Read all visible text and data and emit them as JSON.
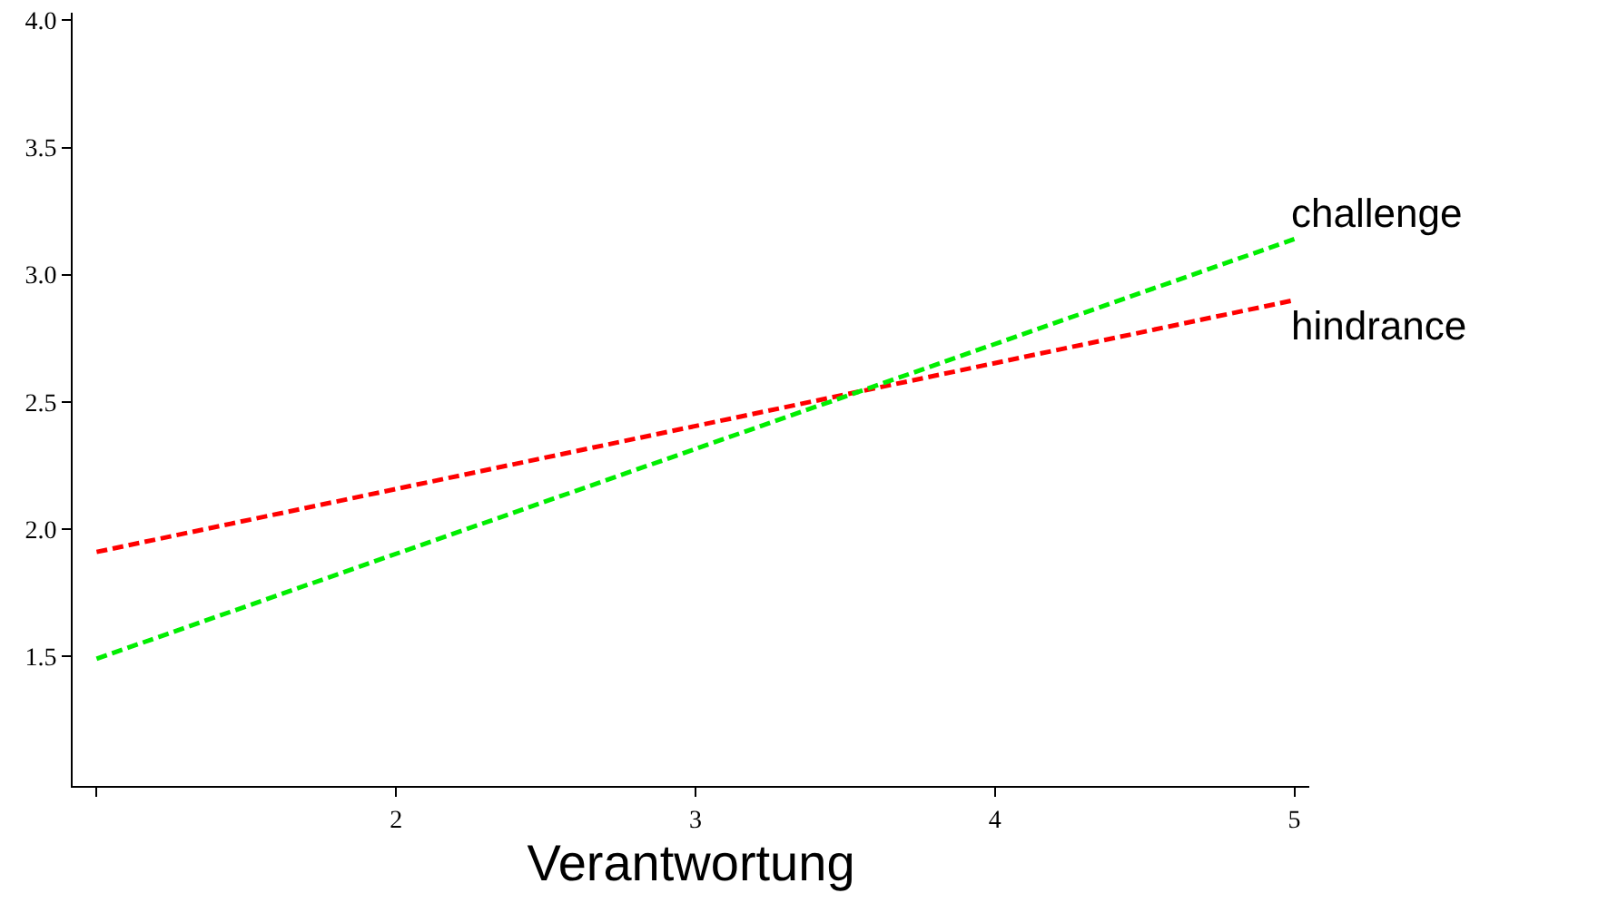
{
  "chart_data": {
    "type": "line",
    "xlabel": "Verantwortung",
    "line_style": "dashed",
    "marker": "none",
    "legend": false,
    "x": [
      1,
      5
    ],
    "series": [
      {
        "name": "hindrance",
        "color": "#ff0000",
        "values": [
          1.91,
          2.9
        ]
      },
      {
        "name": "challenge",
        "color": "#00ee00",
        "values": [
          1.49,
          3.14
        ]
      }
    ],
    "xlim": [
      0.92,
      5.05
    ],
    "ylim": [
      0.99,
      4.03
    ],
    "xticks": [
      {
        "value": 1,
        "label": null
      },
      2,
      3,
      4,
      5
    ],
    "yticks": [
      1.5,
      {
        "value": 2,
        "label": "2.0"
      },
      2.5,
      {
        "value": 3,
        "label": "3.0"
      },
      3.5,
      {
        "value": 4,
        "label": "4.0"
      }
    ]
  }
}
